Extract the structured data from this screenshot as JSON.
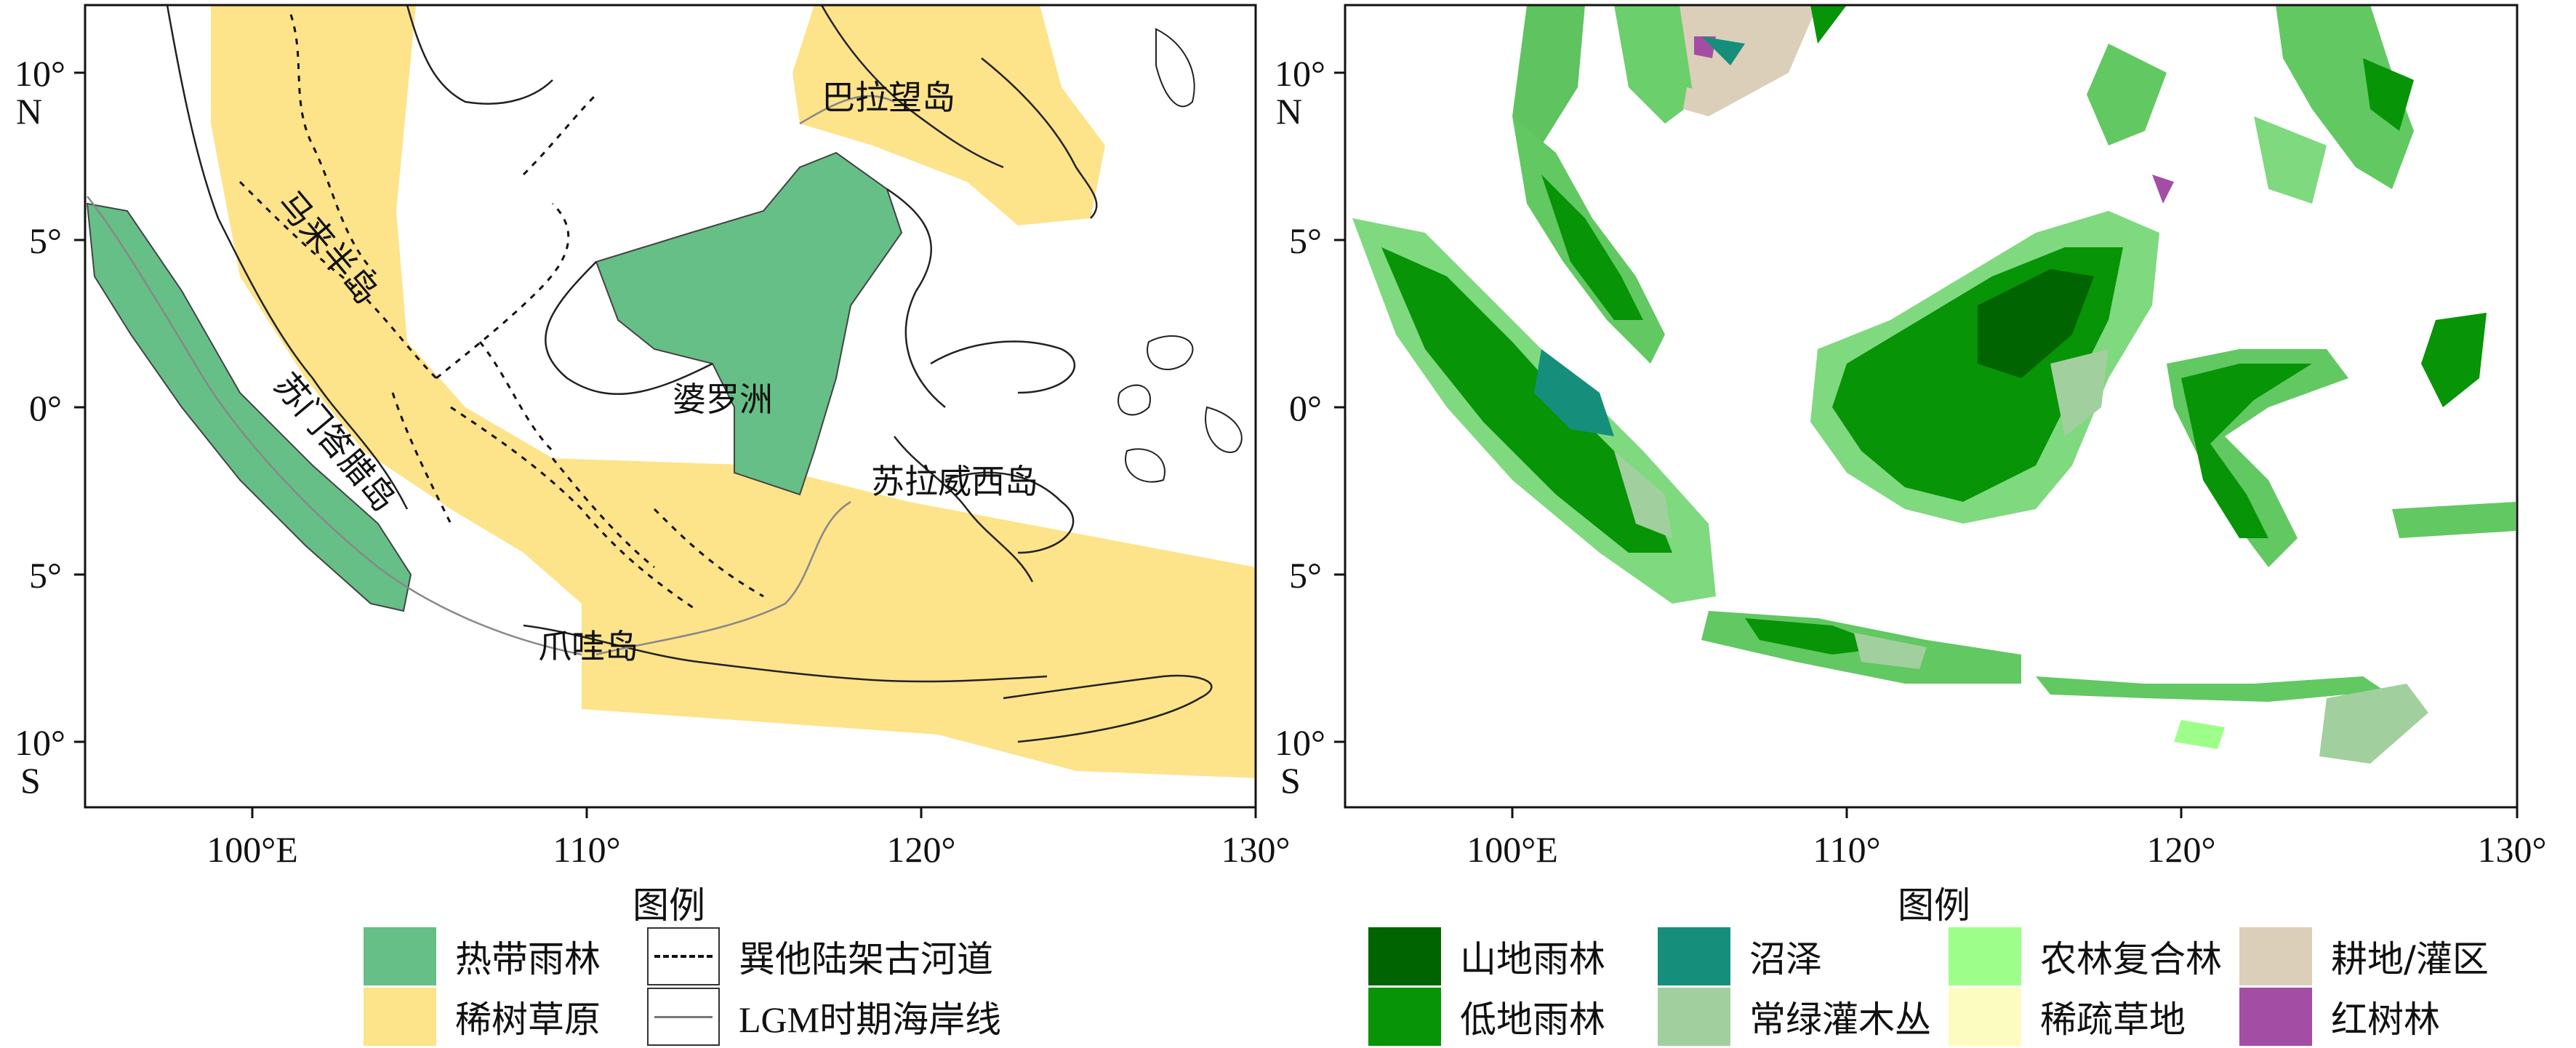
{
  "left_map": {
    "y_ticks": [
      "10°",
      "N",
      "5°",
      "0°",
      "5°",
      "10°",
      "S"
    ],
    "x_ticks": [
      "100°E",
      "110°",
      "120°",
      "130°"
    ],
    "labels": {
      "palawan": "巴拉望岛",
      "malay_peninsula": "马来半岛",
      "borneo": "婆罗洲",
      "sumatra": "苏门答腊岛",
      "sulawesi": "苏拉威西岛",
      "java": "爪哇岛"
    }
  },
  "right_map": {
    "y_ticks": [
      "10°",
      "N",
      "5°",
      "0°",
      "5°",
      "10°",
      "S"
    ],
    "x_ticks": [
      "100°E",
      "110°",
      "120°",
      "130°"
    ]
  },
  "left_legend": {
    "title": "图例",
    "items": [
      {
        "label": "热带雨林",
        "color": "#66bf86"
      },
      {
        "label": "稀树草原",
        "color": "#fde38a"
      },
      {
        "label": "巽他陆架古河道",
        "style": "dashed"
      },
      {
        "label": "LGM时期海岸线",
        "style": "solid-grey"
      }
    ]
  },
  "right_legend": {
    "title": "图例",
    "items": [
      {
        "label": "山地雨林",
        "color": "#006400"
      },
      {
        "label": "低地雨林",
        "color": "#079407"
      },
      {
        "label": "沼泽",
        "color": "#168e7c"
      },
      {
        "label": "常绿灌木丛",
        "color": "#a2cf9e"
      },
      {
        "label": "农林复合林",
        "color": "#9dff8a"
      },
      {
        "label": "稀疏草地",
        "color": "#fdfcc0"
      },
      {
        "label": "耕地/灌区",
        "color": "#dccfb9"
      },
      {
        "label": "红树林",
        "color": "#a34ea4"
      }
    ]
  }
}
